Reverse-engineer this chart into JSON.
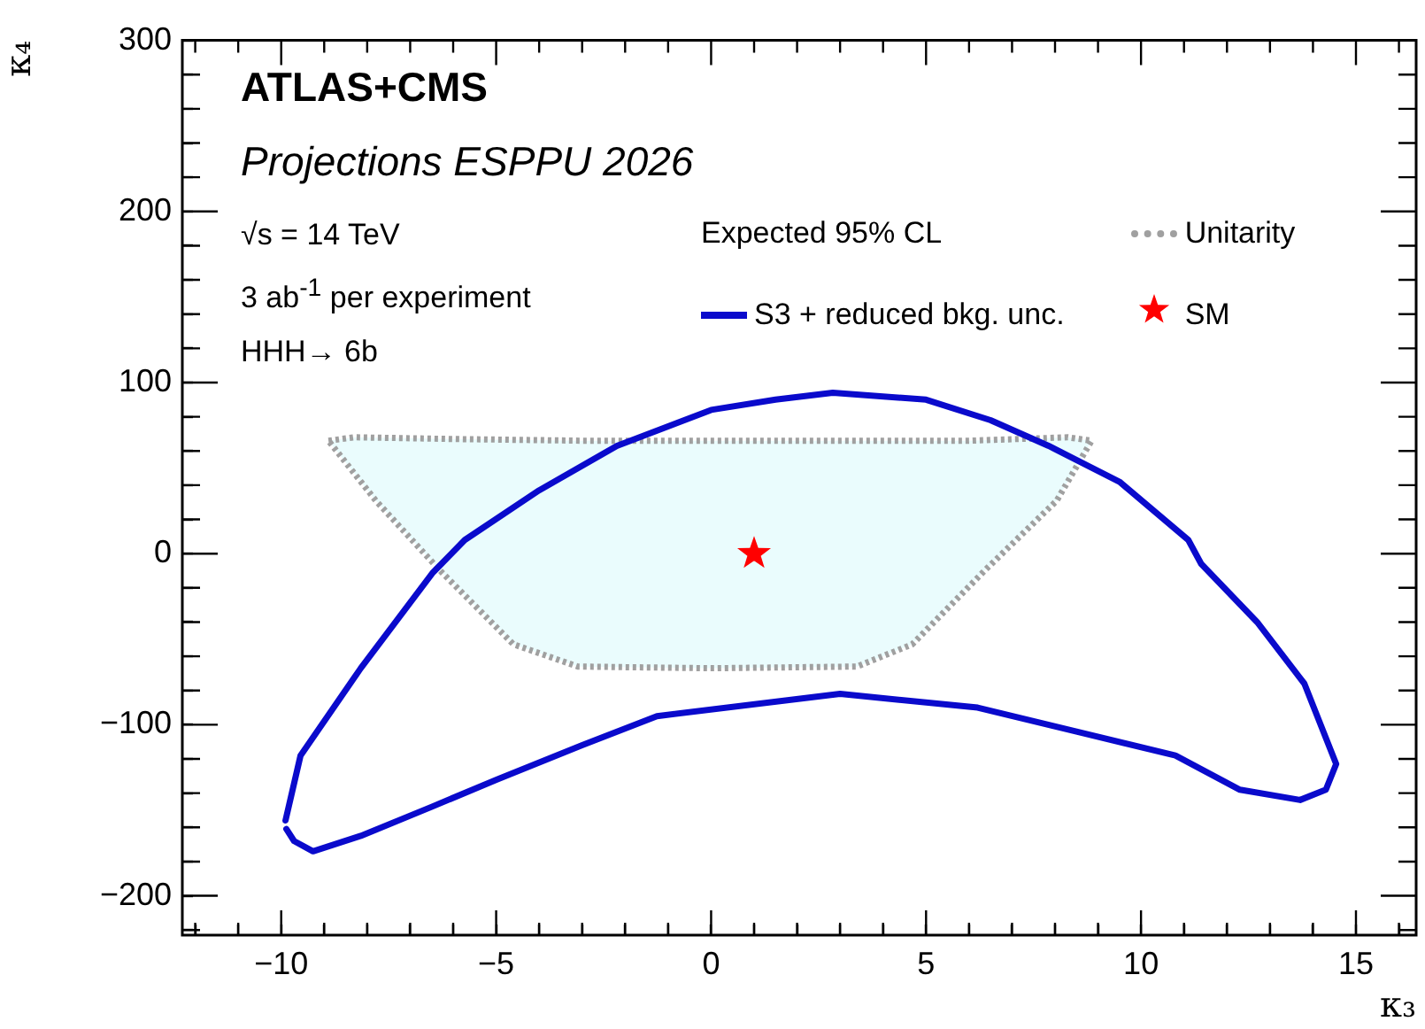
{
  "chart_data": {
    "type": "line",
    "xlabel": "κ₃",
    "ylabel": "κ₄",
    "legend_title": "Expected 95% CL",
    "legend": "top right",
    "grid": false,
    "annotations": [
      "ATLAS+CMS",
      "Projections ESPPU 2026",
      "√s = 14 TeV",
      "3 ab$^{-1}$ per experiment",
      "HHH→ 6b"
    ],
    "xlim": [
      -12.3,
      16.4
    ],
    "ylim": [
      -223,
      300
    ],
    "xticks": [
      {
        "value": -12,
        "label": null
      },
      {
        "value": -11,
        "label": null
      },
      -10,
      {
        "value": -9,
        "label": null
      },
      {
        "value": -8,
        "label": null
      },
      {
        "value": -7,
        "label": null
      },
      {
        "value": -6,
        "label": null
      },
      -5,
      {
        "value": -4,
        "label": null
      },
      {
        "value": -3,
        "label": null
      },
      {
        "value": -2,
        "label": null
      },
      {
        "value": -1,
        "label": null
      },
      0,
      {
        "value": 1,
        "label": null
      },
      {
        "value": 2,
        "label": null
      },
      {
        "value": 3,
        "label": null
      },
      {
        "value": 4,
        "label": null
      },
      5,
      {
        "value": 6,
        "label": null
      },
      {
        "value": 7,
        "label": null
      },
      {
        "value": 8,
        "label": null
      },
      {
        "value": 9,
        "label": null
      },
      10,
      {
        "value": 11,
        "label": null
      },
      {
        "value": 12,
        "label": null
      },
      {
        "value": 13,
        "label": null
      },
      {
        "value": 14,
        "label": null
      },
      15,
      {
        "value": 16,
        "label": null
      }
    ],
    "yticks": [
      {
        "value": -220,
        "label": null
      },
      -200,
      {
        "value": -180,
        "label": null
      },
      {
        "value": -160,
        "label": null
      },
      {
        "value": -140,
        "label": null
      },
      {
        "value": -120,
        "label": null
      },
      -100,
      {
        "value": -80,
        "label": null
      },
      {
        "value": -60,
        "label": null
      },
      {
        "value": -40,
        "label": null
      },
      {
        "value": -20,
        "label": null
      },
      0,
      {
        "value": 20,
        "label": null
      },
      {
        "value": 40,
        "label": null
      },
      {
        "value": 60,
        "label": null
      },
      {
        "value": 80,
        "label": null
      },
      100,
      {
        "value": 120,
        "label": null
      },
      {
        "value": 140,
        "label": null
      },
      {
        "value": 160,
        "label": null
      },
      {
        "value": 180,
        "label": null
      },
      200,
      {
        "value": 220,
        "label": null
      },
      {
        "value": 240,
        "label": null
      },
      {
        "value": 260,
        "label": null
      },
      {
        "value": 280,
        "label": null
      },
      300
    ],
    "series": [
      {
        "name": "Unitarity",
        "type": "area",
        "color": "#a0a0a0",
        "line_style": "dotted",
        "marker": "none",
        "x": [
          -8.9,
          -8.3,
          -6,
          -3,
          0,
          3,
          6,
          8.3,
          8.85,
          8.04,
          6.36,
          4.68,
          3.4,
          0,
          -3.1,
          -4.6,
          -6.3,
          -7.8
        ],
        "values": [
          66,
          68,
          67,
          66,
          66,
          66,
          66,
          68,
          66,
          31,
          -10,
          -53,
          -66,
          -67,
          -66,
          -53,
          -10,
          31
        ]
      },
      {
        "name": "S3 + reduced bkg. unc.",
        "type": "line",
        "color": "#0a0acc",
        "line_style": "solid",
        "marker": "none",
        "x": [
          -9.9,
          -9.55,
          -8.15,
          -6.47,
          -5.73,
          -4,
          -2.19,
          0,
          1.5,
          2.83,
          5,
          6.5,
          7.85,
          9.5,
          11.1,
          11.4,
          12.7,
          13.8,
          14.54,
          14.3,
          13.7,
          12.3,
          10.8,
          8.5,
          6.2,
          3,
          -1.26,
          -3,
          -4.98,
          -6.5,
          -8.15,
          -9.26,
          -9.7,
          -9.88
        ],
        "values": [
          -156,
          -118,
          -67,
          -11,
          8,
          37,
          63,
          84,
          90,
          94,
          90,
          78,
          63,
          42,
          8,
          -6,
          -40,
          -76,
          -123,
          -138,
          -144,
          -138,
          -118,
          -104,
          -90,
          -82,
          -95,
          -112,
          -132,
          -148,
          -165,
          -174,
          -168,
          -161
        ]
      },
      {
        "name": "SM",
        "type": "scatter",
        "color": "#ff0000",
        "marker": "star",
        "x": [
          1
        ],
        "values": [
          0
        ]
      }
    ]
  }
}
